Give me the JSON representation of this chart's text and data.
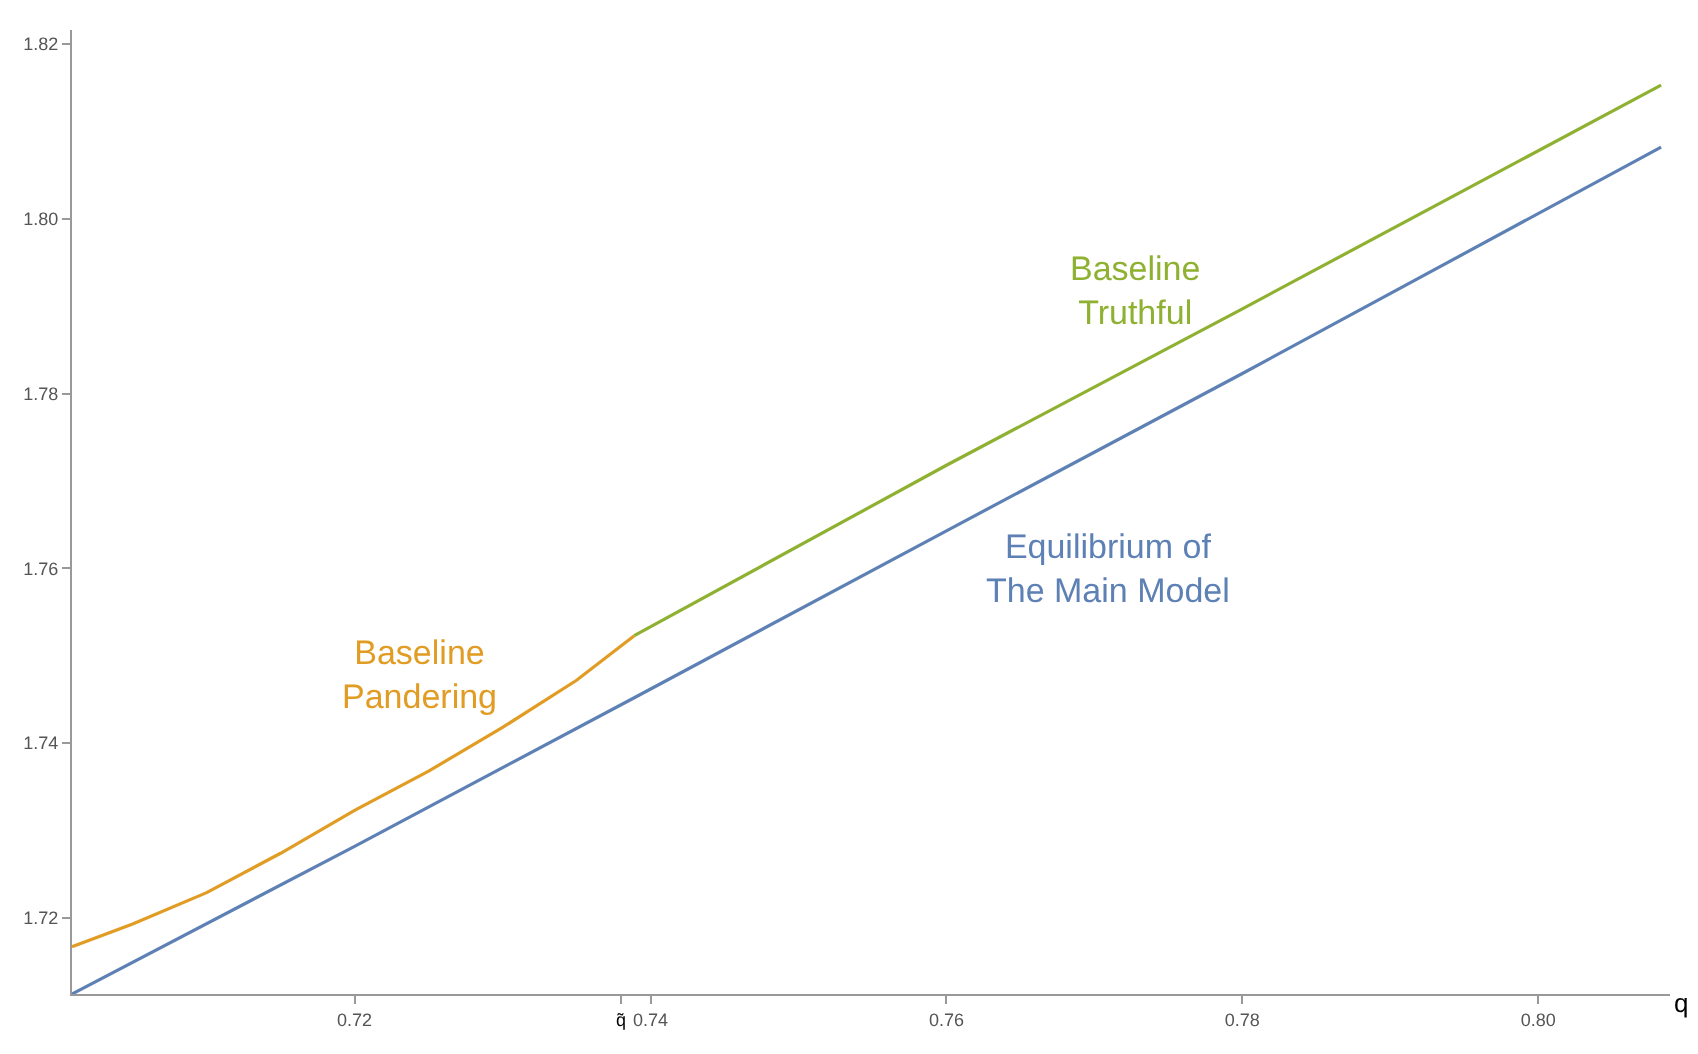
{
  "chart_data": {
    "type": "line",
    "xlabel": "q",
    "xlim": [
      0.7009,
      0.8089
    ],
    "ylim": [
      1.7113,
      1.8216
    ],
    "xticks": [
      0.72,
      {
        "value": 0.738,
        "label": "q̃"
      },
      0.74,
      0.76,
      0.78,
      {
        "value": 0.8,
        "label": "0.80"
      }
    ],
    "yticks": [
      1.72,
      1.74,
      1.76,
      1.78,
      {
        "value": 1.8,
        "label": "1.80"
      },
      1.82
    ],
    "marker": "none",
    "line_style": "solid",
    "series": [
      {
        "color": "#5e81b5",
        "x": [
          0.7009,
          0.72,
          0.7389,
          0.76,
          0.78,
          0.8083
        ],
        "values": [
          1.7113,
          1.7282,
          1.7452,
          1.7643,
          1.7823,
          1.8082
        ]
      },
      {
        "color": "#e19c24",
        "x": [
          0.7009,
          0.705,
          0.71,
          0.715,
          0.72,
          0.725,
          0.73,
          0.735,
          0.7389
        ],
        "values": [
          1.7167,
          1.7193,
          1.7229,
          1.7274,
          1.7323,
          1.7368,
          1.7418,
          1.7472,
          1.7523
        ]
      },
      {
        "color": "#8fb131",
        "x": [
          0.7389,
          0.76,
          0.78,
          0.8083
        ],
        "values": [
          1.7523,
          1.7718,
          1.7897,
          1.8153
        ]
      }
    ],
    "annotations": [
      "Equilibrium of\nThe Main Model",
      "Baseline\nPandering",
      "Baseline\nTruthful"
    ]
  }
}
